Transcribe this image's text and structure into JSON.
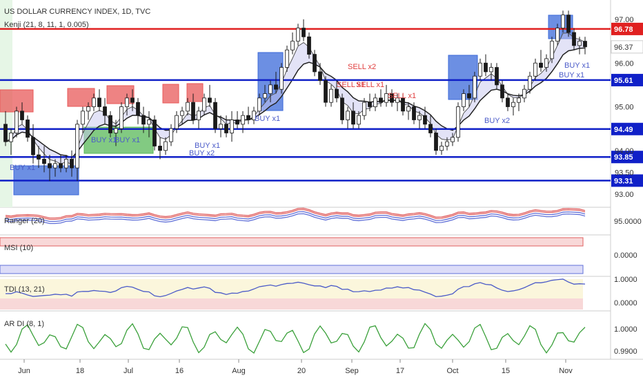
{
  "chart_data": {
    "type": "candlestick",
    "title": "US DOLLAR CURRENCY INDEX, 1D, TVC",
    "indicator_label": "Kenji (21, 8, 11, 1, 0.005)",
    "price_ticks": [
      "97.00",
      "96.37",
      "96.00",
      "95.00",
      "94.00",
      "93.50",
      "93.00"
    ],
    "hlines": [
      {
        "value": 96.78,
        "label": "96.78",
        "color": "#e02020"
      },
      {
        "value": 95.61,
        "label": "95.61",
        "color": "#1020c8"
      },
      {
        "value": 94.49,
        "label": "94.49",
        "color": "#1020c8"
      },
      {
        "value": 93.85,
        "label": "93.85",
        "color": "#1020c8"
      },
      {
        "value": 93.31,
        "label": "93.31",
        "color": "#1020c8"
      }
    ],
    "current_price": "96.37",
    "x_labels": [
      "Jun",
      "18",
      "Jul",
      "16",
      "Aug",
      "20",
      "Sep",
      "17",
      "Oct",
      "15",
      "Nov"
    ],
    "signals": [
      {
        "text": "BUY x1",
        "type": "buy"
      },
      {
        "text": "BUY x1",
        "type": "buy"
      },
      {
        "text": "BUY x1",
        "type": "buy"
      },
      {
        "text": "BUY x1",
        "type": "buy"
      },
      {
        "text": "BUY x2",
        "type": "buy"
      },
      {
        "text": "BUY x1",
        "type": "buy"
      },
      {
        "text": "SELL x2",
        "type": "sell"
      },
      {
        "text": "SELL x1",
        "type": "sell"
      },
      {
        "text": "SELL x1",
        "type": "sell"
      },
      {
        "text": "SELL x1",
        "type": "sell"
      },
      {
        "text": "BUY x2",
        "type": "buy"
      },
      {
        "text": "BUY x1",
        "type": "buy"
      },
      {
        "text": "BUY x1",
        "type": "buy"
      }
    ],
    "candles": [
      [
        94.6,
        94.9,
        94.1,
        94.2
      ],
      [
        94.2,
        94.5,
        93.9,
        94.4
      ],
      [
        94.4,
        95.0,
        94.3,
        94.9
      ],
      [
        94.9,
        95.1,
        94.6,
        94.7
      ],
      [
        94.7,
        94.8,
        94.2,
        94.3
      ],
      [
        94.3,
        94.6,
        93.7,
        93.9
      ],
      [
        93.9,
        94.1,
        93.6,
        93.8
      ],
      [
        93.8,
        94.1,
        93.5,
        93.7
      ],
      [
        93.7,
        93.9,
        93.3,
        93.6
      ],
      [
        93.6,
        93.8,
        93.4,
        93.7
      ],
      [
        93.7,
        93.9,
        93.5,
        93.6
      ],
      [
        93.6,
        93.9,
        93.5,
        93.8
      ],
      [
        93.8,
        94.0,
        93.4,
        93.6
      ],
      [
        93.6,
        94.7,
        93.3,
        94.6
      ],
      [
        94.6,
        95.0,
        94.4,
        94.9
      ],
      [
        94.9,
        95.1,
        94.7,
        95.0
      ],
      [
        95.0,
        95.3,
        94.9,
        95.2
      ],
      [
        95.2,
        95.4,
        94.9,
        95.0
      ],
      [
        95.0,
        95.2,
        94.6,
        94.8
      ],
      [
        94.8,
        94.9,
        94.3,
        94.4
      ],
      [
        94.4,
        94.7,
        94.1,
        94.5
      ],
      [
        94.5,
        95.1,
        94.4,
        95.0
      ],
      [
        95.0,
        95.3,
        94.8,
        95.2
      ],
      [
        95.2,
        95.4,
        94.9,
        95.1
      ],
      [
        95.1,
        95.2,
        94.6,
        94.8
      ],
      [
        94.8,
        95.0,
        94.4,
        94.6
      ],
      [
        94.6,
        94.9,
        94.3,
        94.7
      ],
      [
        94.7,
        94.8,
        94.0,
        94.1
      ],
      [
        94.1,
        94.3,
        93.8,
        94.0
      ],
      [
        94.0,
        94.3,
        93.9,
        94.2
      ],
      [
        94.2,
        94.6,
        94.1,
        94.5
      ],
      [
        94.5,
        94.9,
        94.4,
        94.8
      ],
      [
        94.8,
        95.0,
        94.6,
        94.9
      ],
      [
        94.9,
        95.2,
        94.8,
        95.1
      ],
      [
        95.1,
        95.3,
        94.6,
        94.7
      ],
      [
        94.7,
        95.0,
        94.5,
        94.9
      ],
      [
        94.9,
        95.3,
        94.8,
        95.2
      ],
      [
        95.2,
        95.5,
        95.0,
        95.1
      ],
      [
        95.1,
        95.2,
        94.4,
        94.5
      ],
      [
        94.5,
        94.8,
        94.3,
        94.6
      ],
      [
        94.6,
        94.8,
        94.3,
        94.4
      ],
      [
        94.4,
        94.9,
        94.2,
        94.7
      ],
      [
        94.7,
        94.9,
        94.5,
        94.6
      ],
      [
        94.6,
        94.9,
        94.4,
        94.8
      ],
      [
        94.8,
        95.0,
        94.6,
        94.7
      ],
      [
        94.7,
        95.0,
        94.6,
        94.9
      ],
      [
        94.9,
        95.3,
        94.8,
        95.2
      ],
      [
        95.2,
        95.5,
        95.1,
        95.3
      ],
      [
        95.3,
        95.6,
        95.1,
        95.5
      ],
      [
        95.5,
        95.8,
        95.3,
        95.4
      ],
      [
        95.4,
        96.0,
        95.3,
        95.9
      ],
      [
        95.9,
        96.4,
        95.8,
        96.3
      ],
      [
        96.3,
        96.7,
        96.2,
        96.5
      ],
      [
        96.5,
        96.9,
        96.4,
        96.8
      ],
      [
        96.8,
        97.0,
        96.5,
        96.6
      ],
      [
        96.6,
        96.7,
        96.1,
        96.2
      ],
      [
        96.2,
        96.3,
        95.7,
        95.8
      ],
      [
        95.8,
        96.0,
        95.5,
        95.6
      ],
      [
        95.6,
        95.7,
        95.0,
        95.1
      ],
      [
        95.1,
        95.5,
        95.0,
        95.4
      ],
      [
        95.4,
        95.6,
        95.1,
        95.2
      ],
      [
        95.2,
        95.3,
        94.6,
        94.7
      ],
      [
        94.7,
        95.0,
        94.5,
        94.9
      ],
      [
        94.9,
        95.1,
        94.5,
        94.6
      ],
      [
        94.6,
        94.9,
        94.5,
        94.8
      ],
      [
        94.8,
        95.2,
        94.7,
        95.1
      ],
      [
        95.1,
        95.3,
        94.9,
        95.0
      ],
      [
        95.0,
        95.3,
        94.9,
        95.2
      ],
      [
        95.2,
        95.4,
        95.0,
        95.1
      ],
      [
        95.1,
        95.5,
        95.0,
        95.3
      ],
      [
        95.3,
        95.4,
        95.0,
        95.1
      ],
      [
        95.1,
        95.3,
        94.9,
        95.2
      ],
      [
        95.2,
        95.3,
        94.8,
        94.9
      ],
      [
        94.9,
        95.1,
        94.7,
        95.0
      ],
      [
        95.0,
        95.1,
        94.6,
        94.7
      ],
      [
        94.7,
        94.9,
        94.5,
        94.8
      ],
      [
        94.8,
        95.0,
        94.5,
        94.6
      ],
      [
        94.6,
        94.8,
        94.3,
        94.4
      ],
      [
        94.4,
        94.5,
        93.9,
        94.0
      ],
      [
        94.0,
        94.2,
        93.9,
        94.1
      ],
      [
        94.1,
        94.3,
        94.0,
        94.2
      ],
      [
        94.2,
        94.4,
        94.1,
        94.3
      ],
      [
        94.3,
        95.1,
        94.2,
        95.0
      ],
      [
        95.0,
        95.4,
        94.9,
        95.3
      ],
      [
        95.3,
        95.5,
        95.0,
        95.2
      ],
      [
        95.2,
        95.8,
        95.1,
        95.7
      ],
      [
        95.7,
        96.1,
        95.6,
        96.0
      ],
      [
        96.0,
        96.2,
        95.7,
        95.8
      ],
      [
        95.8,
        96.0,
        95.6,
        95.9
      ],
      [
        95.9,
        96.0,
        95.4,
        95.5
      ],
      [
        95.5,
        95.6,
        95.1,
        95.2
      ],
      [
        95.2,
        95.3,
        94.9,
        95.0
      ],
      [
        95.0,
        95.2,
        94.8,
        95.1
      ],
      [
        95.1,
        95.3,
        94.9,
        95.2
      ],
      [
        95.2,
        95.5,
        95.1,
        95.4
      ],
      [
        95.4,
        95.8,
        95.3,
        95.7
      ],
      [
        95.7,
        96.1,
        95.6,
        96.0
      ],
      [
        96.0,
        96.3,
        95.8,
        95.9
      ],
      [
        95.9,
        96.2,
        95.8,
        96.1
      ],
      [
        96.1,
        96.6,
        96.0,
        96.5
      ],
      [
        96.5,
        96.9,
        96.4,
        96.8
      ],
      [
        96.8,
        97.2,
        96.7,
        97.1
      ],
      [
        97.1,
        97.2,
        96.6,
        96.7
      ],
      [
        96.7,
        96.8,
        96.3,
        96.4
      ],
      [
        96.4,
        96.6,
        96.2,
        96.5
      ],
      [
        96.5,
        96.6,
        96.2,
        96.37
      ]
    ],
    "indicators": [
      {
        "name": "Ranger (20)",
        "axis_tick": "95.0000"
      },
      {
        "name": "MSI (10)",
        "axis_tick": "0.0000"
      },
      {
        "name": "TDI (13, 21)",
        "axis_ticks": [
          "1.0000",
          "0.0000"
        ]
      },
      {
        "name": "AR DI (8, 1)",
        "axis_ticks": [
          "1.0000",
          "0.9900"
        ]
      }
    ]
  },
  "colors": {
    "up": "#1a1a1a",
    "down": "#1a1a1a",
    "support": "#1020c8",
    "resistance": "#e02020",
    "box_red": "#e85a5a",
    "box_blue": "#3b6ad9",
    "box_green": "#58b858"
  }
}
